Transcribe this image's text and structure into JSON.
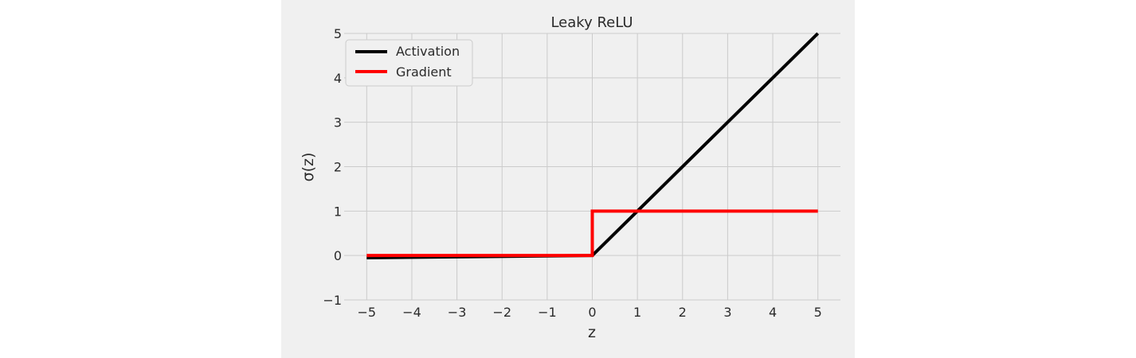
{
  "chart_data": {
    "type": "line",
    "title": "Leaky ReLU",
    "xlabel": "z",
    "ylabel": "σ(z)",
    "xlim": [
      -5.5,
      5.5
    ],
    "ylim": [
      -1,
      5
    ],
    "xticks": [
      -5,
      -4,
      -3,
      -2,
      -1,
      0,
      1,
      2,
      3,
      4,
      5
    ],
    "xtick_labels": [
      "−5",
      "−4",
      "−3",
      "−2",
      "−1",
      "0",
      "1",
      "2",
      "3",
      "4",
      "5"
    ],
    "yticks": [
      -1,
      0,
      1,
      2,
      3,
      4,
      5
    ],
    "ytick_labels": [
      "−1",
      "0",
      "1",
      "2",
      "3",
      "4",
      "5"
    ],
    "grid": true,
    "legend_position": "top-left",
    "background_color": "#f0f0f0",
    "grid_color": "#cbcbcb",
    "series": [
      {
        "name": "Activation",
        "color": "#000000",
        "x": [
          -5,
          0,
          5
        ],
        "y": [
          -0.05,
          0,
          5
        ]
      },
      {
        "name": "Gradient",
        "color": "#ff0000",
        "x": [
          -5,
          0,
          0,
          5
        ],
        "y": [
          0,
          0,
          1,
          1
        ]
      }
    ]
  }
}
